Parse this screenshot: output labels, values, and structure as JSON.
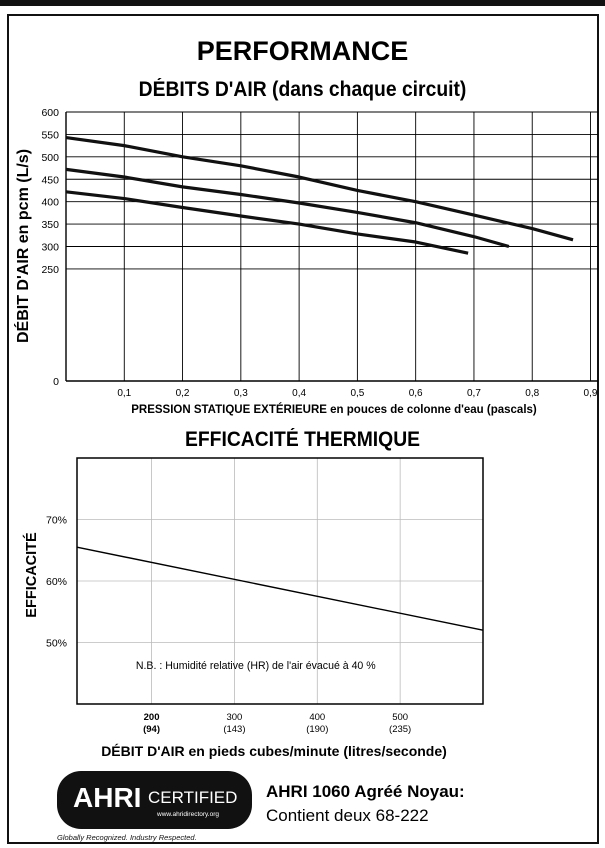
{
  "header": {
    "title": "PERFORMANCE",
    "chart1_title": "DÉBITS D'AIR (dans chaque circuit)",
    "chart2_title": "EFFICACITÉ THERMIQUE"
  },
  "chart_data": [
    {
      "type": "line",
      "title": "DÉBITS D'AIR (dans chaque circuit)",
      "xlabel": "PRESSION STATIQUE EXTÉRIEURE en pouces de colonne d'eau (pascals)",
      "ylabel": "DÉBIT D'AIR en pcm (L/s)",
      "xlim": [
        0,
        0.9
      ],
      "ylim": [
        0,
        600
      ],
      "xticks": [
        "0,1",
        "0,2",
        "0,3",
        "0,4",
        "0,5",
        "0,6",
        "0,7",
        "0,8",
        "0,9"
      ],
      "yticks": [
        "0",
        "250",
        "300",
        "350",
        "400",
        "450",
        "500",
        "550",
        "600"
      ],
      "grid": true,
      "series": [
        {
          "x": [
            0,
            0.1,
            0.2,
            0.3,
            0.4,
            0.5,
            0.6,
            0.7,
            0.8,
            0.87
          ],
          "y": [
            543,
            525,
            500,
            480,
            455,
            425,
            400,
            370,
            340,
            315
          ]
        },
        {
          "x": [
            0,
            0.1,
            0.2,
            0.3,
            0.4,
            0.5,
            0.6,
            0.7,
            0.76
          ],
          "y": [
            472,
            455,
            433,
            416,
            397,
            376,
            353,
            322,
            300
          ]
        },
        {
          "x": [
            0,
            0.1,
            0.2,
            0.3,
            0.4,
            0.5,
            0.6,
            0.69
          ],
          "y": [
            422,
            407,
            387,
            368,
            350,
            328,
            310,
            285
          ]
        }
      ]
    },
    {
      "type": "line",
      "title": "EFFICACITÉ THERMIQUE",
      "xlabel": "DÉBIT D'AIR en pieds cubes/minute (litres/seconde)",
      "ylabel": "EFFICACITÉ",
      "xticks": [
        {
          "main": "200",
          "sub": "(94)"
        },
        {
          "main": "300",
          "sub": "(143)"
        },
        {
          "main": "400",
          "sub": "(190)"
        },
        {
          "main": "500",
          "sub": "(235)"
        }
      ],
      "yticks": [
        "50%",
        "60%",
        "70%"
      ],
      "xlim": [
        110,
        600
      ],
      "ylim": [
        40,
        80
      ],
      "grid": true,
      "annotation": "N.B. : Humidité relative (HR) de l'air évacué à 40 %",
      "series": [
        {
          "x": [
            110,
            600
          ],
          "y": [
            65.5,
            52
          ]
        }
      ]
    }
  ],
  "footer": {
    "logo_brand": "AHRI",
    "logo_certified": "CERTIFIED",
    "logo_url": "www.ahridirectory.org",
    "logo_tagline": "Globally Recognized. Industry Respected.",
    "ahri_title": "AHRI 1060 Agréé Noyau:",
    "ahri_sub": "Contient deux 68-222"
  }
}
